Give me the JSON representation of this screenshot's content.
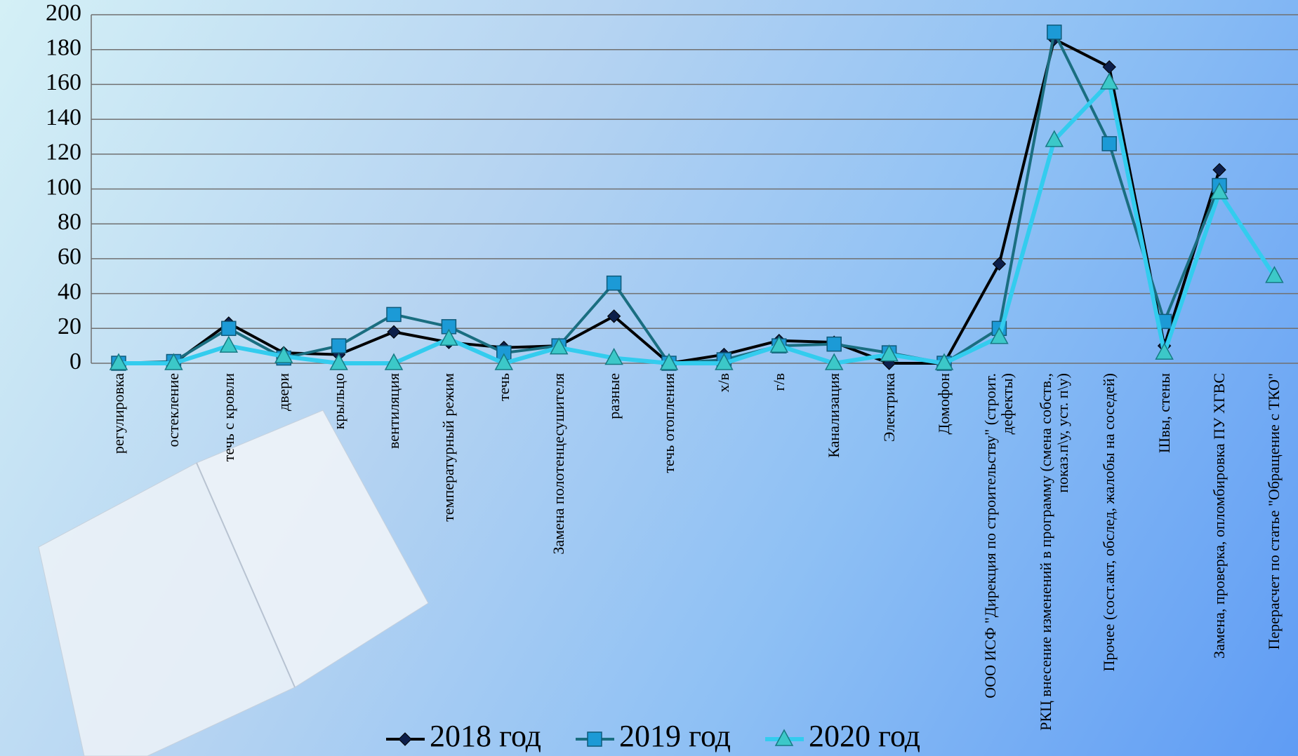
{
  "chart_data": {
    "type": "line",
    "categories": [
      "регулировка",
      "остекление",
      "течь с кровли",
      "двери",
      "крыльцо",
      "вентиляция",
      "температурный режим",
      "течь",
      "Замена полотенцесушителя",
      "разные",
      "течь отопления",
      "х/в",
      "г/в",
      "Канализация",
      "Электрика",
      "Домофон",
      "ООО ИСФ \"Дирекция по строительству\" (строит. дефекты)",
      "РКЦ внесение изменений в программу (смена собств., показ.п\\у, уст. п\\у)",
      "Прочее (сост.акт, обслед, жалобы на соседей)",
      "Швы, стены",
      "Замена, проверка, опломбировка ПУ ХГВС",
      "Перерасчет по статье \"Обращение с ТКО\""
    ],
    "series": [
      {
        "name": "2018 год",
        "color": "#000000",
        "values": [
          0,
          0,
          23,
          6,
          5,
          18,
          12,
          9,
          10,
          27,
          0,
          5,
          13,
          12,
          0,
          0,
          57,
          186,
          170,
          10,
          111,
          null
        ]
      },
      {
        "name": "2019 год",
        "color": "#1a6e80",
        "values": [
          0,
          1,
          20,
          3,
          10,
          28,
          21,
          6,
          10,
          46,
          0,
          2,
          10,
          11,
          6,
          0,
          20,
          190,
          126,
          24,
          102,
          null
        ]
      },
      {
        "name": "2020 год",
        "color": "#33ccee",
        "values": [
          0,
          0,
          10,
          4,
          0,
          0,
          14,
          0,
          9,
          3,
          0,
          0,
          10,
          0,
          5,
          0,
          15,
          128,
          161,
          6,
          98,
          50
        ]
      }
    ],
    "ylim": [
      0,
      200
    ],
    "yticks": [
      0,
      20,
      40,
      60,
      80,
      100,
      120,
      140,
      160,
      180,
      200
    ],
    "grid": true,
    "legend": "bottom"
  }
}
